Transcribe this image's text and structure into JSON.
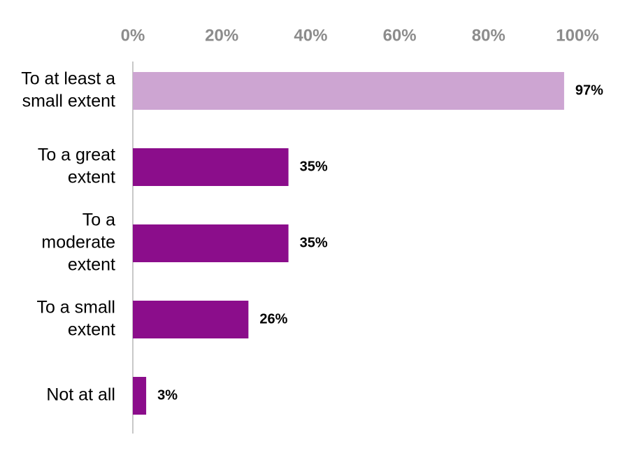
{
  "chart_data": {
    "type": "bar",
    "orientation": "horizontal",
    "x_axis_position": "top",
    "xlim": [
      0,
      100
    ],
    "x_ticks": [
      0,
      20,
      40,
      60,
      80,
      100
    ],
    "x_tick_labels": [
      "0%",
      "20%",
      "40%",
      "60%",
      "80%",
      "100%"
    ],
    "grid": false,
    "legend": "none",
    "title": "",
    "xlabel": "",
    "ylabel": "",
    "categories": [
      [
        "To at least a",
        "small extent"
      ],
      [
        "To a great",
        "extent"
      ],
      [
        "To a",
        "moderate",
        "extent"
      ],
      [
        "To a small",
        "extent"
      ],
      [
        "Not at all"
      ]
    ],
    "values": [
      97,
      35,
      35,
      26,
      3
    ],
    "data_labels": [
      "97%",
      "35%",
      "35%",
      "26%",
      "3%"
    ],
    "bar_colors": [
      "#cda5d2",
      "#8b0d8b",
      "#8b0d8b",
      "#8b0d8b",
      "#8b0d8b"
    ]
  }
}
